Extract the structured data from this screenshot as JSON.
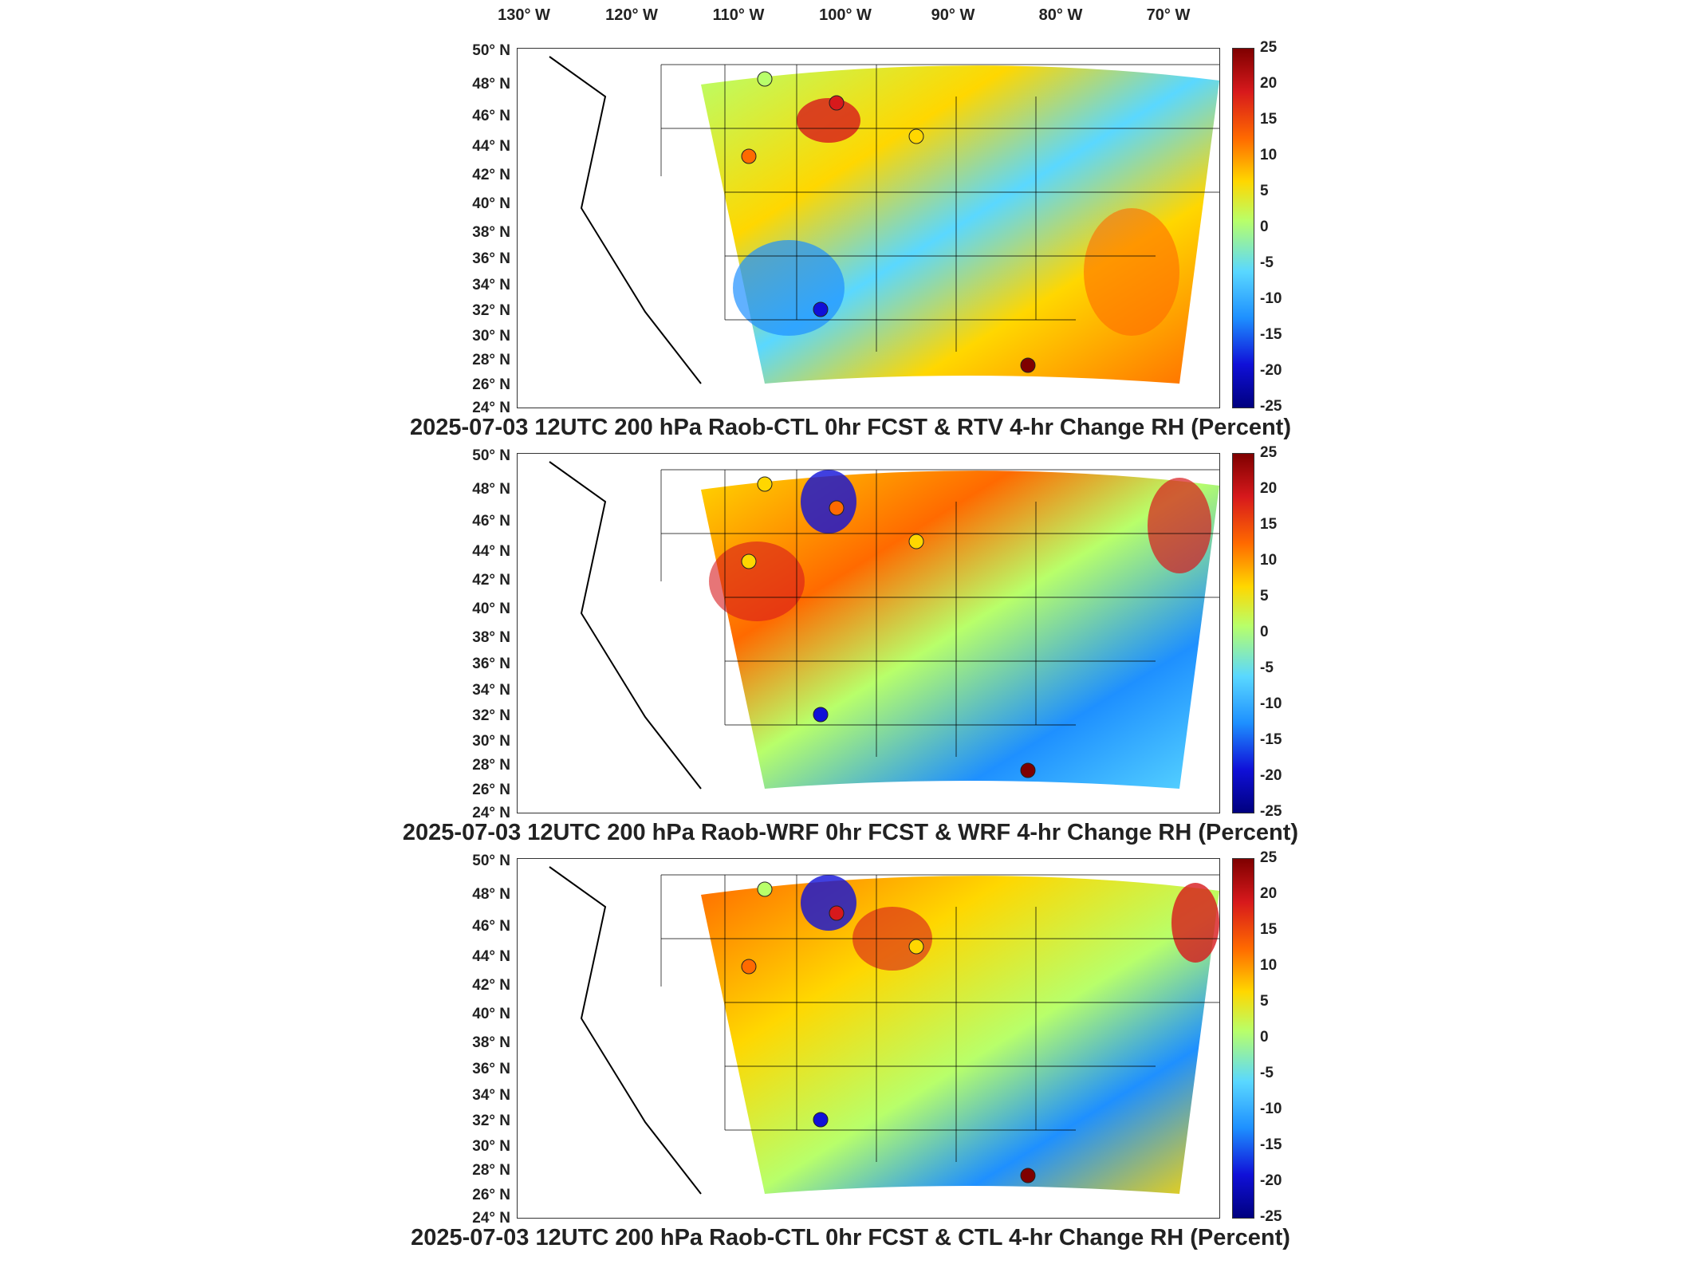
{
  "longitude_labels": [
    "130° W",
    "120° W",
    "110° W",
    "100° W",
    "90° W",
    "80° W",
    "70° W"
  ],
  "latitude_labels": [
    "50° N",
    "48° N",
    "46° N",
    "44° N",
    "42° N",
    "40° N",
    "38° N",
    "36° N",
    "34° N",
    "32° N",
    "30° N",
    "28° N",
    "26° N",
    "24° N"
  ],
  "colorbar": {
    "ticks": [
      "25",
      "20",
      "15",
      "10",
      "5",
      "0",
      "-5",
      "-10",
      "-15",
      "-20",
      "-25"
    ],
    "colors": [
      "#7f0000",
      "#d7191c",
      "#ff6a00",
      "#ffd700",
      "#b8ff6a",
      "#5ad8ff",
      "#1e90ff",
      "#1010d8",
      "#00007f"
    ]
  },
  "panels": [
    {
      "title": "2025-07-03 12UTC 200 hPa Raob-CTL 0hr FCST & RTV 4-hr Change RH (Percent)"
    },
    {
      "title": "2025-07-03 12UTC 200 hPa Raob-WRF 0hr FCST & WRF 4-hr Change RH (Percent)"
    },
    {
      "title": "2025-07-03 12UTC 200 hPa Raob-CTL 0hr FCST & CTL 4-hr Change RH (Percent)"
    }
  ]
}
